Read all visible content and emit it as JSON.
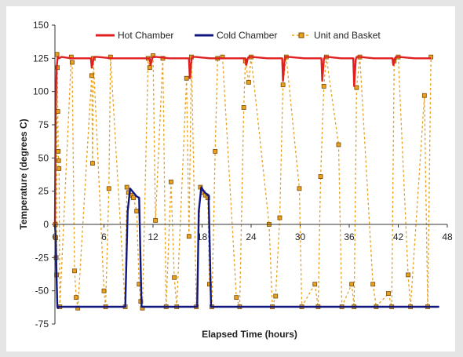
{
  "chart_data": {
    "type": "line",
    "title": "",
    "xlabel": "Elapsed Time   (hours)",
    "ylabel": "Temperature   (degrees C)",
    "xlim": [
      0,
      48
    ],
    "ylim": [
      -75,
      150
    ],
    "x_ticks": [
      "0",
      "6",
      "12",
      "18",
      "24",
      "30",
      "36",
      "42",
      "48"
    ],
    "y_ticks": [
      "-75",
      "-50",
      "-25",
      "0",
      "25",
      "50",
      "75",
      "100",
      "125",
      "150"
    ],
    "grid": false,
    "legend_position": "top",
    "colors": {
      "hot": "#e02020",
      "cold": "#101880",
      "unit": "#e8a020",
      "unit_marker_edge": "#7a4a00"
    },
    "series": [
      {
        "name": "Hot Chamber",
        "style": "solid",
        "x": [
          0,
          0.1,
          0.2,
          0.35,
          0.5,
          0.8,
          2.0,
          4.4,
          4.5,
          4.7,
          4.8,
          5.2,
          7.0,
          9.0,
          11.6,
          11.7,
          11.9,
          12.0,
          12.4,
          14.0,
          16.4,
          16.5,
          16.7,
          16.8,
          17.2,
          19.0,
          21.0,
          23.3,
          23.4,
          23.6,
          23.7,
          24.1,
          26.0,
          27.8,
          27.9,
          28.1,
          28.2,
          28.6,
          30.5,
          32.6,
          32.7,
          32.9,
          33.0,
          33.4,
          35.0,
          36.5,
          36.6,
          36.8,
          36.9,
          37.3,
          39.0,
          41.3,
          41.4,
          41.6,
          41.7,
          42.1,
          44.0,
          46.0
        ],
        "y": [
          0,
          90,
          118,
          126,
          125,
          126,
          125,
          125,
          118,
          124,
          126,
          126,
          125,
          125,
          125,
          120,
          125,
          126,
          126,
          125,
          125,
          110,
          124,
          126,
          126,
          125,
          125,
          125,
          120,
          125,
          126,
          126,
          125,
          125,
          108,
          124,
          126,
          126,
          125,
          125,
          108,
          124,
          126,
          126,
          125,
          125,
          104,
          124,
          126,
          126,
          125,
          125,
          120,
          125,
          126,
          126,
          125,
          125
        ]
      },
      {
        "name": "Cold Chamber",
        "style": "solid",
        "x": [
          0,
          0.1,
          0.2,
          0.3,
          0.35,
          0.45,
          0.6,
          0.8,
          2.0,
          4.0,
          6.0,
          8.6,
          8.9,
          9.2,
          9.6,
          10.0,
          10.3,
          10.6,
          11.0,
          14.0,
          17.4,
          17.6,
          17.9,
          18.2,
          18.5,
          18.8,
          19.1,
          19.4,
          21.0,
          25.0,
          30.0,
          35.0,
          40.0,
          47.0
        ],
        "y": [
          0,
          -10,
          -40,
          -62,
          -63,
          -62,
          -62,
          -62,
          -62,
          -62,
          -62,
          -62,
          10,
          27,
          24,
          21,
          20,
          -62,
          -62,
          -62,
          -62,
          10,
          28,
          25,
          23,
          22,
          -62,
          -62,
          -62,
          -62,
          -62,
          -62,
          -62,
          -62
        ]
      },
      {
        "name": "Unit and Basket",
        "style": "dashed with square markers",
        "points": [
          [
            0.05,
            0
          ],
          [
            0.1,
            -10
          ],
          [
            0.15,
            -25
          ],
          [
            0.2,
            -38
          ],
          [
            0.25,
            128
          ],
          [
            0.3,
            118
          ],
          [
            0.35,
            85
          ],
          [
            0.4,
            55
          ],
          [
            0.45,
            48
          ],
          [
            0.5,
            42
          ],
          [
            0.6,
            -62
          ],
          [
            2.0,
            126
          ],
          [
            2.1,
            122
          ],
          [
            2.4,
            -35
          ],
          [
            2.6,
            -55
          ],
          [
            2.8,
            -63
          ],
          [
            4.5,
            112
          ],
          [
            4.6,
            46
          ],
          [
            4.7,
            125
          ],
          [
            6.0,
            -50
          ],
          [
            6.2,
            -62
          ],
          [
            6.6,
            27
          ],
          [
            6.8,
            126
          ],
          [
            8.6,
            -62
          ],
          [
            8.8,
            28
          ],
          [
            9.0,
            24
          ],
          [
            9.3,
            22
          ],
          [
            9.6,
            20
          ],
          [
            10.0,
            10
          ],
          [
            10.3,
            -45
          ],
          [
            10.5,
            -58
          ],
          [
            10.7,
            -63
          ],
          [
            11.4,
            125
          ],
          [
            11.6,
            118
          ],
          [
            12.0,
            127
          ],
          [
            12.3,
            3
          ],
          [
            13.2,
            125
          ],
          [
            13.6,
            -62
          ],
          [
            14.2,
            32
          ],
          [
            14.6,
            -40
          ],
          [
            14.9,
            -62
          ],
          [
            16.1,
            110
          ],
          [
            16.4,
            -9
          ],
          [
            16.7,
            126
          ],
          [
            17.3,
            -62
          ],
          [
            17.8,
            28
          ],
          [
            18.1,
            24
          ],
          [
            18.4,
            22
          ],
          [
            18.7,
            20
          ],
          [
            18.9,
            -45
          ],
          [
            19.2,
            -62
          ],
          [
            19.6,
            55
          ],
          [
            19.9,
            125
          ],
          [
            20.5,
            126
          ],
          [
            22.2,
            -55
          ],
          [
            22.6,
            -62
          ],
          [
            23.1,
            88
          ],
          [
            23.3,
            123
          ],
          [
            23.7,
            107
          ],
          [
            24.0,
            126
          ],
          [
            26.2,
            0
          ],
          [
            26.6,
            -62
          ],
          [
            27.0,
            -54
          ],
          [
            27.5,
            5
          ],
          [
            27.9,
            105
          ],
          [
            28.3,
            126
          ],
          [
            29.9,
            27
          ],
          [
            30.2,
            -62
          ],
          [
            31.8,
            -45
          ],
          [
            32.2,
            -62
          ],
          [
            32.5,
            36
          ],
          [
            32.9,
            104
          ],
          [
            33.2,
            126
          ],
          [
            34.7,
            60
          ],
          [
            35.1,
            -62
          ],
          [
            36.3,
            -45
          ],
          [
            36.6,
            -62
          ],
          [
            36.9,
            103
          ],
          [
            37.3,
            126
          ],
          [
            38.9,
            -45
          ],
          [
            39.3,
            -62
          ],
          [
            40.8,
            -52
          ],
          [
            41.2,
            -62
          ],
          [
            41.5,
            123
          ],
          [
            42.0,
            126
          ],
          [
            43.2,
            -38
          ],
          [
            43.5,
            -62
          ],
          [
            45.2,
            97
          ],
          [
            45.6,
            -62
          ],
          [
            46.0,
            126
          ]
        ]
      }
    ]
  }
}
